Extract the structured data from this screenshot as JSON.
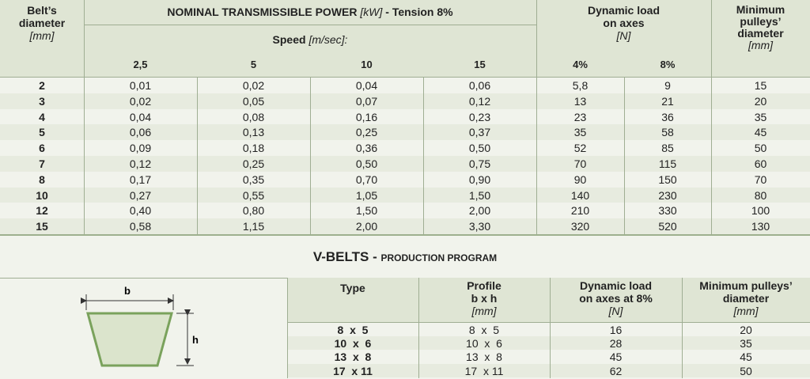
{
  "table1": {
    "col_belt": {
      "line1": "Belt’s",
      "line2": "diameter",
      "unit": "[mm]"
    },
    "power_header": {
      "main": "NOMINAL TRANSMISSIBLE POWER",
      "unit": "[kW]",
      "tension": "- Tension 8%"
    },
    "speed_header": {
      "main": "Speed",
      "unit": "[m/sec]:"
    },
    "speeds": [
      "2,5",
      "5",
      "10",
      "15"
    ],
    "dyn_header": {
      "line1": "Dynamic load",
      "line2": "on axes",
      "unit": "[N]"
    },
    "dyn_cols": [
      "4%",
      "8%"
    ],
    "min_header": {
      "line1": "Minimum",
      "line2": "pulleys’",
      "line3": "diameter",
      "unit": "[mm]"
    },
    "rows": [
      {
        "d": "2",
        "p1": "0,01",
        "p2": "0,02",
        "p3": "0,04",
        "p4": "0,06",
        "l4": "5,8",
        "l8": "9",
        "m": "15"
      },
      {
        "d": "3",
        "p1": "0,02",
        "p2": "0,05",
        "p3": "0,07",
        "p4": "0,12",
        "l4": "13",
        "l8": "21",
        "m": "20"
      },
      {
        "d": "4",
        "p1": "0,04",
        "p2": "0,08",
        "p3": "0,16",
        "p4": "0,23",
        "l4": "23",
        "l8": "36",
        "m": "35"
      },
      {
        "d": "5",
        "p1": "0,06",
        "p2": "0,13",
        "p3": "0,25",
        "p4": "0,37",
        "l4": "35",
        "l8": "58",
        "m": "45"
      },
      {
        "d": "6",
        "p1": "0,09",
        "p2": "0,18",
        "p3": "0,36",
        "p4": "0,50",
        "l4": "52",
        "l8": "85",
        "m": "50"
      },
      {
        "d": "7",
        "p1": "0,12",
        "p2": "0,25",
        "p3": "0,50",
        "p4": "0,75",
        "l4": "70",
        "l8": "115",
        "m": "60"
      },
      {
        "d": "8",
        "p1": "0,17",
        "p2": "0,35",
        "p3": "0,70",
        "p4": "0,90",
        "l4": "90",
        "l8": "150",
        "m": "70"
      },
      {
        "d": "10",
        "p1": "0,27",
        "p2": "0,55",
        "p3": "1,05",
        "p4": "1,50",
        "l4": "140",
        "l8": "230",
        "m": "80"
      },
      {
        "d": "12",
        "p1": "0,40",
        "p2": "0,80",
        "p3": "1,50",
        "p4": "2,00",
        "l4": "210",
        "l8": "330",
        "m": "100"
      },
      {
        "d": "15",
        "p1": "0,58",
        "p2": "1,15",
        "p3": "2,00",
        "p4": "3,30",
        "l4": "320",
        "l8": "520",
        "m": "130"
      }
    ]
  },
  "vbelts": {
    "title": "V-BELTS -",
    "subtitle": "PRODUCTION PROGRAM",
    "diagram": {
      "b_label": "b",
      "h_label": "h"
    },
    "headers": {
      "type": "Type",
      "profile1": "Profile",
      "profile2": "b x h",
      "profile_unit": "[mm]",
      "dyn1": "Dynamic load",
      "dyn2": "on axes at 8%",
      "dyn_unit": "[N]",
      "min1": "Minimum pulleys’",
      "min2": "diameter",
      "min_unit": "[mm]"
    },
    "rows": [
      {
        "type": "8  x  5",
        "profile": "8  x  5",
        "load": "16",
        "min": "20"
      },
      {
        "type": "10  x  6",
        "profile": "10  x  6",
        "load": "28",
        "min": "35"
      },
      {
        "type": "13  x  8",
        "profile": "13  x  8",
        "load": "45",
        "min": "45"
      },
      {
        "type": "17  x 11",
        "profile": "17  x 11",
        "load": "62",
        "min": "50"
      }
    ]
  }
}
